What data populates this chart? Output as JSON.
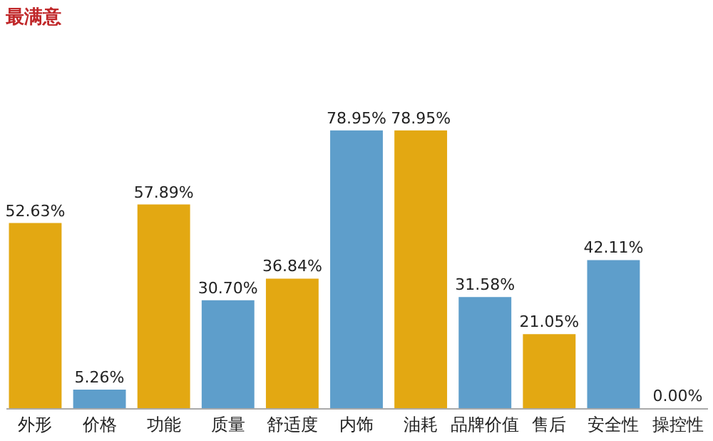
{
  "chart_data": {
    "type": "bar",
    "title": "最满意",
    "categories": [
      "外形",
      "价格",
      "功能",
      "质量",
      "舒适度",
      "内饰",
      "油耗",
      "品牌价值",
      "售后",
      "安全性",
      "操控性"
    ],
    "values": [
      52.63,
      5.26,
      57.89,
      30.7,
      36.84,
      78.95,
      78.95,
      31.58,
      21.05,
      42.11,
      0.0
    ],
    "value_labels": [
      "52.63%",
      "5.26%",
      "57.89%",
      "30.70%",
      "36.84%",
      "78.95%",
      "78.95%",
      "31.58%",
      "21.05%",
      "42.11%",
      "0.00%"
    ],
    "colors": [
      "#e3a812",
      "#5e9ecb",
      "#e3a812",
      "#5e9ecb",
      "#e3a812",
      "#5e9ecb",
      "#e3a812",
      "#5e9ecb",
      "#e3a812",
      "#5e9ecb",
      "#e3a812"
    ],
    "grid": false,
    "legend": false
  }
}
